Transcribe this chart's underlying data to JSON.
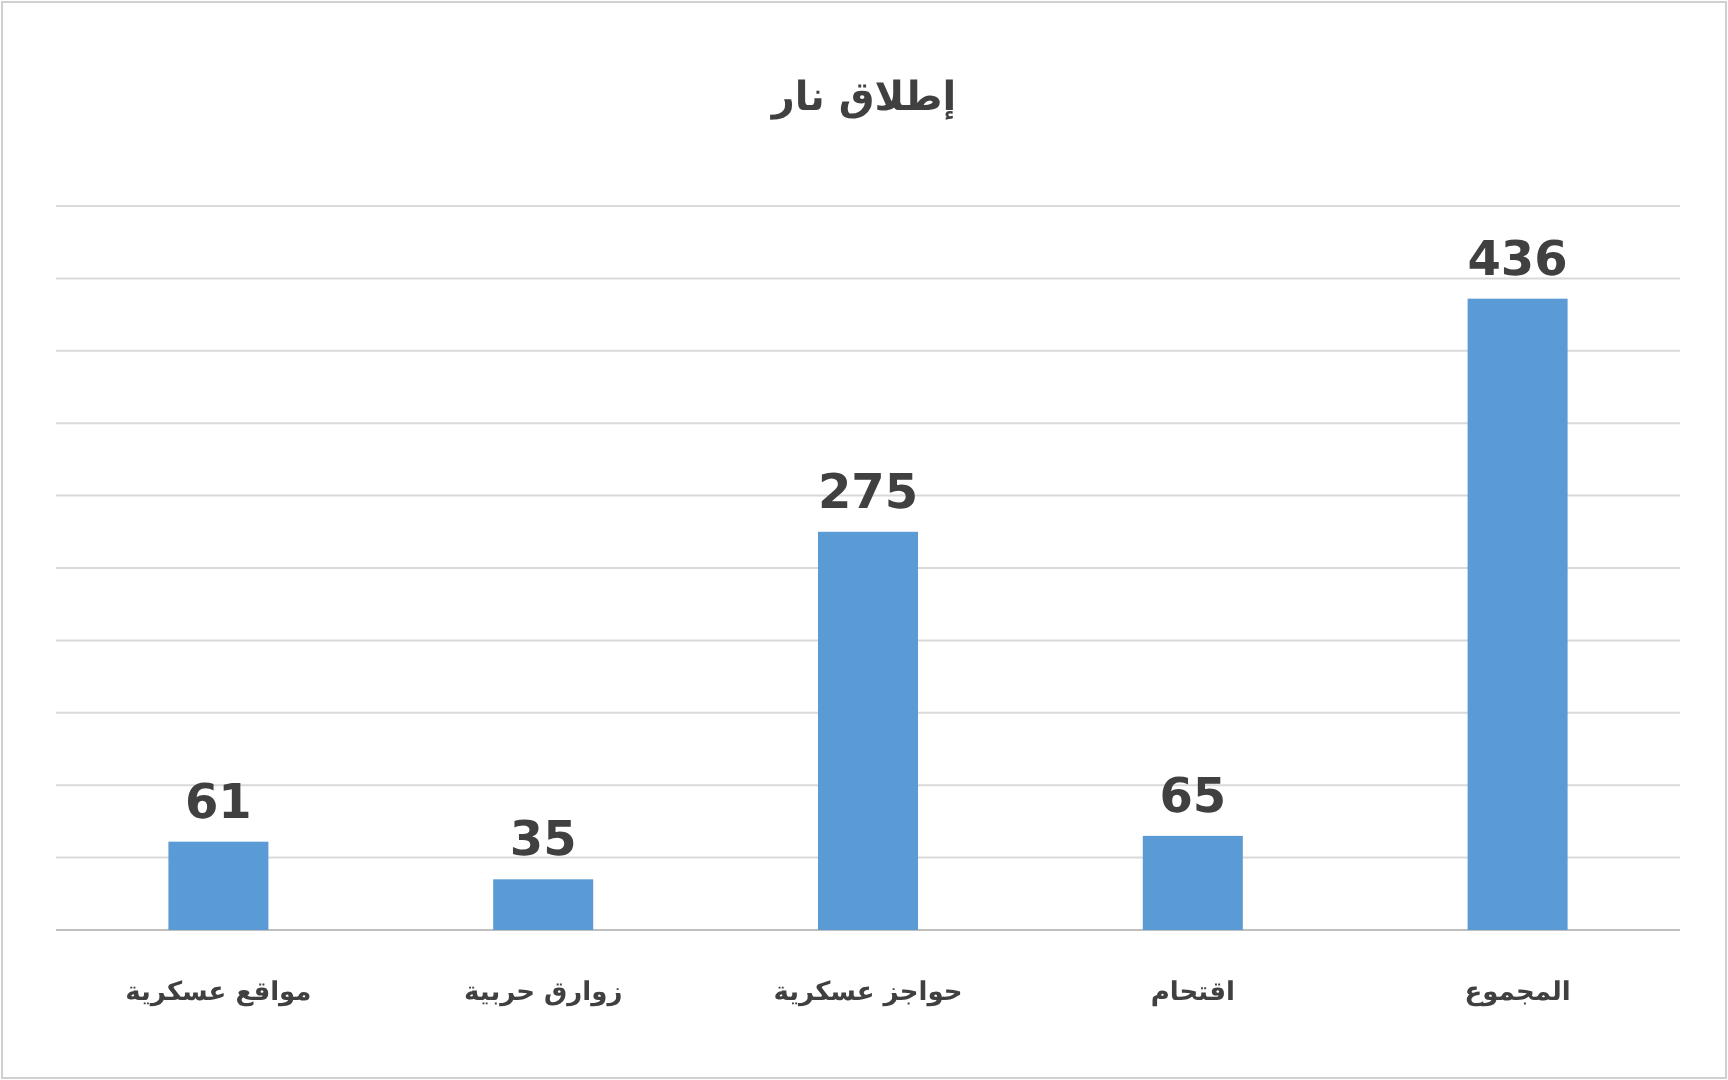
{
  "chart_data": {
    "type": "bar",
    "title": "إطلاق نار",
    "categories": [
      "مواقع عسكرية",
      "زوارق حربية",
      "حواجز عسكرية",
      "اقتحام",
      "المجموع"
    ],
    "values": [
      61,
      35,
      275,
      65,
      436
    ],
    "color": "#5b9bd5",
    "data_labels": true,
    "grid": "y",
    "tick_labels": "x",
    "ylim": [
      0,
      500
    ],
    "yticks": [
      {
        "value": 0,
        "label": null
      },
      {
        "value": 50,
        "label": null
      },
      {
        "value": 100,
        "label": null
      },
      {
        "value": 150,
        "label": null
      },
      {
        "value": 200,
        "label": null
      },
      {
        "value": 250,
        "label": null
      },
      {
        "value": 300,
        "label": null
      },
      {
        "value": 350,
        "label": null
      },
      {
        "value": 400,
        "label": null
      },
      {
        "value": 450,
        "label": null
      },
      {
        "value": 500,
        "label": null
      }
    ]
  }
}
